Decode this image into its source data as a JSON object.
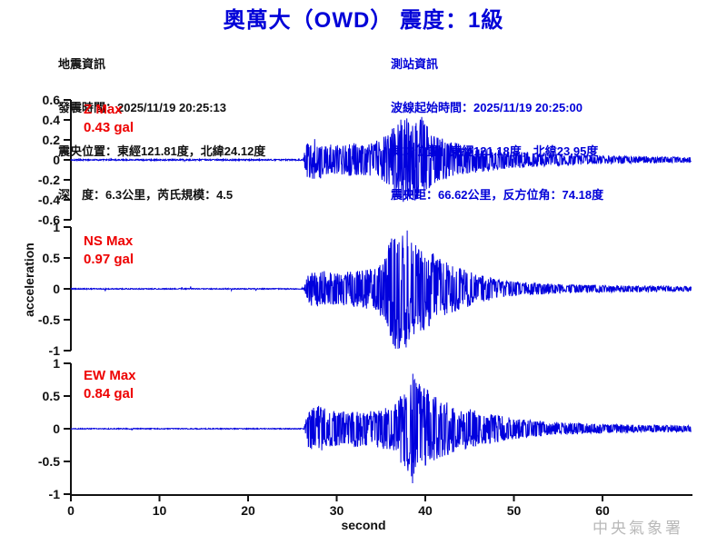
{
  "title": "奧萬大（OWD） 震度：1級",
  "watermark": "中央氣象署",
  "event_info": {
    "heading": "地震資訊",
    "lines": [
      "發震時間：2025/11/19 20:25:13",
      "震央位置：東經121.81度，北緯24.12度",
      "深　度：6.3公里，芮氏規模：4.5"
    ]
  },
  "station_info": {
    "heading": "測站資訊",
    "lines": [
      "波線起始時間：2025/11/19 20:25:00",
      "測站位置：東經121.18度，北緯23.95度",
      "震央距：66.62公里，反方位角：74.18度"
    ]
  },
  "colors": {
    "accent_blue": "#0000d8",
    "trace_blue": "#0000dd",
    "label_red": "#ee0000",
    "axis_black": "#111111",
    "watermark_gray": "#b9b9b9"
  },
  "chart_data": {
    "type": "line",
    "title": "奧萬大（OWD） 震度：1級",
    "xlabel": "second",
    "ylabel": "acceleration",
    "xlim": [
      0,
      70
    ],
    "x_ticks": [
      0,
      10,
      20,
      30,
      40,
      50,
      60
    ],
    "event_onset_s": 26.4,
    "peak_time_s": 37.5,
    "legend_position": "none",
    "grid": false,
    "series": [
      {
        "name": "Z",
        "max_label": "Z Max",
        "max_value": "0.43 gal",
        "max_gal": 0.43,
        "ylim": [
          -0.6,
          0.6
        ],
        "y_ticks": [
          0.6,
          0.4,
          0.2,
          0,
          -0.2,
          -0.4,
          -0.6
        ],
        "y_tick_labels": [
          "0.6",
          "0.4",
          "0.2",
          "0",
          "-0.2",
          "-0.4",
          "-0.6"
        ],
        "envelope": [
          [
            0,
            0.006
          ],
          [
            26.2,
            0.006
          ],
          [
            26.6,
            0.16
          ],
          [
            27.5,
            0.2
          ],
          [
            29,
            0.15
          ],
          [
            30.5,
            0.14
          ],
          [
            32,
            0.16
          ],
          [
            33.5,
            0.15
          ],
          [
            35,
            0.2
          ],
          [
            36.3,
            0.3
          ],
          [
            37.5,
            0.43
          ],
          [
            38.5,
            0.38
          ],
          [
            39.8,
            0.42
          ],
          [
            40.5,
            0.28
          ],
          [
            42,
            0.2
          ],
          [
            44,
            0.15
          ],
          [
            46,
            0.12
          ],
          [
            49,
            0.09
          ],
          [
            52,
            0.07
          ],
          [
            56,
            0.05
          ],
          [
            60,
            0.04
          ],
          [
            64,
            0.032
          ],
          [
            70,
            0.025
          ]
        ]
      },
      {
        "name": "NS",
        "max_label": "NS Max",
        "max_value": "0.97 gal",
        "max_gal": 0.97,
        "ylim": [
          -1,
          1
        ],
        "y_ticks": [
          1,
          0.5,
          0,
          -0.5,
          -1
        ],
        "y_tick_labels": [
          "1",
          "0.5",
          "0",
          "-0.5",
          "-1"
        ],
        "envelope": [
          [
            0,
            0.006
          ],
          [
            26.3,
            0.006
          ],
          [
            26.8,
            0.22
          ],
          [
            28,
            0.26
          ],
          [
            29.5,
            0.22
          ],
          [
            31,
            0.23
          ],
          [
            32.5,
            0.26
          ],
          [
            34,
            0.28
          ],
          [
            35.3,
            0.42
          ],
          [
            36.3,
            0.75
          ],
          [
            37,
            0.97
          ],
          [
            38,
            0.8
          ],
          [
            39,
            0.6
          ],
          [
            40.3,
            0.55
          ],
          [
            41.5,
            0.42
          ],
          [
            43,
            0.33
          ],
          [
            44.5,
            0.26
          ],
          [
            46,
            0.2
          ],
          [
            48,
            0.13
          ],
          [
            50,
            0.1
          ],
          [
            53,
            0.08
          ],
          [
            56,
            0.06
          ],
          [
            60,
            0.05
          ],
          [
            65,
            0.04
          ],
          [
            70,
            0.035
          ]
        ]
      },
      {
        "name": "EW",
        "max_label": "EW Max",
        "max_value": "0.84 gal",
        "max_gal": 0.84,
        "ylim": [
          -1,
          1
        ],
        "y_ticks": [
          1,
          0.5,
          0,
          -0.5,
          -1
        ],
        "y_tick_labels": [
          "1",
          "0.5",
          "0",
          "-0.5",
          "-1"
        ],
        "envelope": [
          [
            0,
            0.006
          ],
          [
            26.3,
            0.006
          ],
          [
            26.8,
            0.28
          ],
          [
            27.8,
            0.33
          ],
          [
            29,
            0.27
          ],
          [
            30.5,
            0.24
          ],
          [
            32,
            0.26
          ],
          [
            33.5,
            0.24
          ],
          [
            35,
            0.28
          ],
          [
            36.5,
            0.34
          ],
          [
            37.6,
            0.55
          ],
          [
            38.6,
            0.84
          ],
          [
            39.6,
            0.6
          ],
          [
            40.8,
            0.5
          ],
          [
            42,
            0.4
          ],
          [
            43.5,
            0.33
          ],
          [
            45,
            0.28
          ],
          [
            47,
            0.22
          ],
          [
            49,
            0.17
          ],
          [
            51,
            0.13
          ],
          [
            54,
            0.1
          ],
          [
            57,
            0.08
          ],
          [
            60,
            0.065
          ],
          [
            64,
            0.055
          ],
          [
            70,
            0.045
          ]
        ]
      }
    ]
  }
}
